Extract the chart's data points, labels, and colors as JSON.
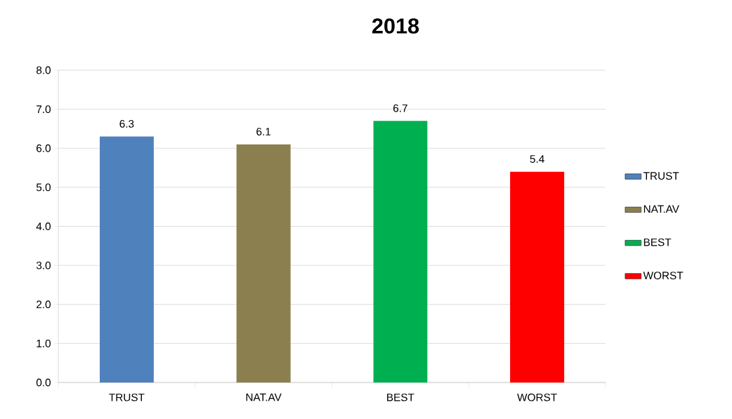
{
  "chart_data": {
    "type": "bar",
    "title": "2018",
    "categories": [
      "TRUST",
      "NAT.AV",
      "BEST",
      "WORST"
    ],
    "series": [
      {
        "name": "TRUST",
        "color": "#4f81bd",
        "values": [
          6.3,
          null,
          null,
          null
        ]
      },
      {
        "name": "NAT.AV",
        "color": "#8c7f4f",
        "values": [
          null,
          6.1,
          null,
          null
        ]
      },
      {
        "name": "BEST",
        "color": "#00b050",
        "values": [
          null,
          null,
          6.7,
          null
        ]
      },
      {
        "name": "WORST",
        "color": "#ff0000",
        "values": [
          null,
          null,
          null,
          5.4
        ]
      }
    ],
    "ylim": [
      0,
      8
    ],
    "yticks": [
      {
        "value": 0,
        "label": "0.0"
      },
      {
        "value": 1,
        "label": "1.0"
      },
      {
        "value": 2,
        "label": "2.0"
      },
      {
        "value": 3,
        "label": "3.0"
      },
      {
        "value": 4,
        "label": "4.0"
      },
      {
        "value": 5,
        "label": "5.0"
      },
      {
        "value": 6,
        "label": "6.0"
      },
      {
        "value": 7,
        "label": "7.0"
      },
      {
        "value": 8,
        "label": "8.0"
      }
    ],
    "grid": "y",
    "legend": "right",
    "data_labels": true
  }
}
